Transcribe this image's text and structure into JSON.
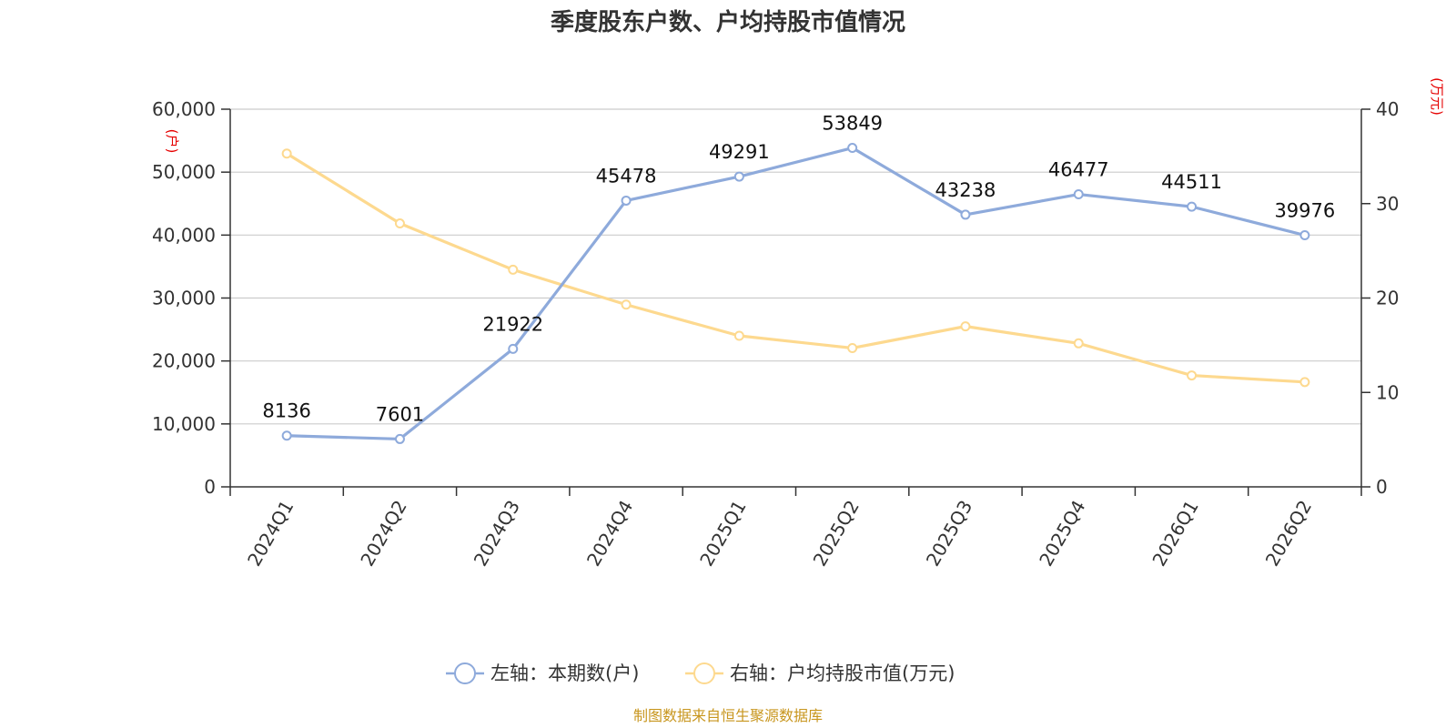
{
  "chart_data": {
    "type": "line",
    "title": "季度股东户数、户均持股市值情况",
    "categories": [
      "2024Q1",
      "2024Q2",
      "2024Q3",
      "2024Q4",
      "2025Q1",
      "2025Q2",
      "2025Q3",
      "2025Q4",
      "2026Q1",
      "2026Q2"
    ],
    "left_axis": {
      "unit": "(户)",
      "ylim": [
        0,
        60000
      ],
      "ticks": [
        "0",
        "10,000",
        "20,000",
        "30,000",
        "40,000",
        "50,000",
        "60,000"
      ],
      "tick_values": [
        0,
        10000,
        20000,
        30000,
        40000,
        50000,
        60000
      ]
    },
    "right_axis": {
      "unit": "(万元)",
      "ylim": [
        0,
        40
      ],
      "ticks": [
        "0",
        "10",
        "20",
        "30",
        "40"
      ],
      "tick_values": [
        0,
        10,
        20,
        30,
        40
      ]
    },
    "series": [
      {
        "name": "左轴：本期数(户)",
        "axis": "left",
        "color": "#8eaadb",
        "values": [
          8136,
          7601,
          21922,
          45478,
          49291,
          53849,
          43238,
          46477,
          44511,
          39976
        ],
        "labels": [
          "8136",
          "7601",
          "21922",
          "45478",
          "49291",
          "53849",
          "43238",
          "46477",
          "44511",
          "39976"
        ]
      },
      {
        "name": "右轴：户均持股市值(万元)",
        "axis": "right",
        "color": "#fdd98f",
        "values": [
          35.3,
          27.9,
          23.0,
          19.3,
          16.0,
          14.7,
          17.0,
          15.2,
          11.8,
          11.1
        ]
      }
    ],
    "grid": true,
    "legend_position": "bottom"
  },
  "footer": {
    "source": "制图数据来自恒生聚源数据库"
  }
}
